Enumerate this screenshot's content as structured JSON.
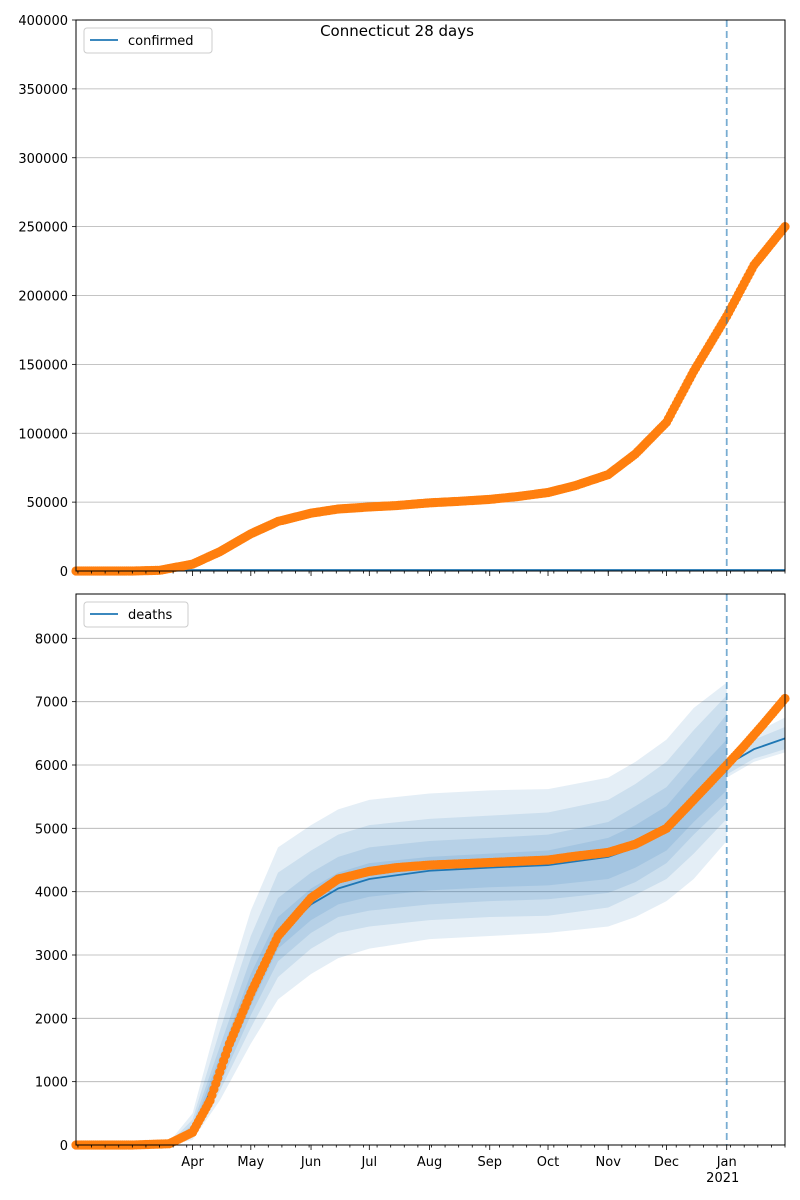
{
  "title": "Connecticut 28 days",
  "chart_data": [
    {
      "type": "line",
      "name": "confirmed-panel",
      "legend": {
        "label": "confirmed",
        "placement": "top-left",
        "color": "#1f77b4"
      },
      "ylim": [
        0,
        400000
      ],
      "yticks": [
        0,
        50000,
        100000,
        150000,
        200000,
        250000,
        300000,
        350000,
        400000
      ],
      "grid": "horizontal",
      "forecast_start": "2021-01-01",
      "model_line": {
        "color": "#1f77b4",
        "values": "near zero throughout"
      },
      "observed": {
        "color": "#ff7f0e",
        "points": [
          [
            "2020-02-01",
            0
          ],
          [
            "2020-03-01",
            0
          ],
          [
            "2020-03-15",
            500
          ],
          [
            "2020-04-01",
            5000
          ],
          [
            "2020-04-15",
            14000
          ],
          [
            "2020-05-01",
            27000
          ],
          [
            "2020-05-15",
            36000
          ],
          [
            "2020-06-01",
            42000
          ],
          [
            "2020-06-15",
            45000
          ],
          [
            "2020-07-01",
            46500
          ],
          [
            "2020-07-15",
            47500
          ],
          [
            "2020-08-01",
            49500
          ],
          [
            "2020-08-15",
            50500
          ],
          [
            "2020-09-01",
            52000
          ],
          [
            "2020-09-15",
            54000
          ],
          [
            "2020-10-01",
            57000
          ],
          [
            "2020-10-15",
            62000
          ],
          [
            "2020-11-01",
            70000
          ],
          [
            "2020-11-15",
            85000
          ],
          [
            "2020-12-01",
            108000
          ],
          [
            "2020-12-15",
            145000
          ],
          [
            "2021-01-01",
            185000
          ],
          [
            "2021-01-15",
            222000
          ],
          [
            "2021-01-31",
            250000
          ]
        ]
      }
    },
    {
      "type": "line",
      "name": "deaths-panel",
      "legend": {
        "label": "deaths",
        "placement": "top-left",
        "color": "#1f77b4"
      },
      "ylim": [
        0,
        8700
      ],
      "yticks": [
        0,
        1000,
        2000,
        3000,
        4000,
        5000,
        6000,
        7000,
        8000
      ],
      "grid": "horizontal",
      "forecast_start": "2021-01-01",
      "model_line": {
        "color": "#1f77b4",
        "points": [
          [
            "2020-03-15",
            0
          ],
          [
            "2020-04-01",
            200
          ],
          [
            "2020-04-15",
            1200
          ],
          [
            "2020-05-01",
            2400
          ],
          [
            "2020-05-15",
            3300
          ],
          [
            "2020-06-01",
            3800
          ],
          [
            "2020-06-15",
            4050
          ],
          [
            "2020-07-01",
            4200
          ],
          [
            "2020-08-01",
            4330
          ],
          [
            "2020-09-01",
            4380
          ],
          [
            "2020-10-01",
            4420
          ],
          [
            "2020-11-01",
            4550
          ],
          [
            "2020-11-15",
            4700
          ],
          [
            "2020-12-01",
            5000
          ],
          [
            "2020-12-15",
            5500
          ],
          [
            "2021-01-01",
            6000
          ],
          [
            "2021-01-15",
            6250
          ],
          [
            "2021-01-31",
            6420
          ]
        ]
      },
      "bands": [
        {
          "opacity": 0.12,
          "points": [
            [
              "2020-03-20",
              0,
              50
            ],
            [
              "2020-04-01",
              80,
              500
            ],
            [
              "2020-04-15",
              700,
              2100
            ],
            [
              "2020-05-01",
              1600,
              3700
            ],
            [
              "2020-05-15",
              2300,
              4700
            ],
            [
              "2020-06-01",
              2700,
              5050
            ],
            [
              "2020-06-15",
              2950,
              5300
            ],
            [
              "2020-07-01",
              3100,
              5450
            ],
            [
              "2020-08-01",
              3250,
              5550
            ],
            [
              "2020-09-01",
              3300,
              5600
            ],
            [
              "2020-10-01",
              3350,
              5620
            ],
            [
              "2020-11-01",
              3450,
              5800
            ],
            [
              "2020-11-15",
              3600,
              6050
            ],
            [
              "2020-12-01",
              3850,
              6400
            ],
            [
              "2020-12-15",
              4200,
              6900
            ],
            [
              "2021-01-01",
              4800,
              7300
            ]
          ]
        },
        {
          "opacity": 0.12,
          "points": [
            [
              "2020-03-20",
              0,
              30
            ],
            [
              "2020-04-01",
              120,
              400
            ],
            [
              "2020-04-15",
              850,
              1800
            ],
            [
              "2020-05-01",
              1850,
              3300
            ],
            [
              "2020-05-15",
              2650,
              4300
            ],
            [
              "2020-06-01",
              3100,
              4650
            ],
            [
              "2020-06-15",
              3350,
              4900
            ],
            [
              "2020-07-01",
              3450,
              5050
            ],
            [
              "2020-08-01",
              3550,
              5150
            ],
            [
              "2020-09-01",
              3600,
              5200
            ],
            [
              "2020-10-01",
              3620,
              5250
            ],
            [
              "2020-11-01",
              3750,
              5450
            ],
            [
              "2020-11-15",
              3950,
              5700
            ],
            [
              "2020-12-01",
              4200,
              6050
            ],
            [
              "2020-12-15",
              4600,
              6550
            ],
            [
              "2021-01-01",
              5150,
              7100
            ]
          ]
        },
        {
          "opacity": 0.12,
          "points": [
            [
              "2020-03-20",
              0,
              20
            ],
            [
              "2020-04-01",
              150,
              320
            ],
            [
              "2020-04-15",
              950,
              1550
            ],
            [
              "2020-05-01",
              2050,
              2950
            ],
            [
              "2020-05-15",
              2900,
              3900
            ],
            [
              "2020-06-01",
              3350,
              4300
            ],
            [
              "2020-06-15",
              3600,
              4550
            ],
            [
              "2020-07-01",
              3700,
              4700
            ],
            [
              "2020-08-01",
              3800,
              4800
            ],
            [
              "2020-09-01",
              3850,
              4850
            ],
            [
              "2020-10-01",
              3880,
              4900
            ],
            [
              "2020-11-01",
              3980,
              5100
            ],
            [
              "2020-11-15",
              4150,
              5350
            ],
            [
              "2020-12-01",
              4450,
              5650
            ],
            [
              "2020-12-15",
              4900,
              6150
            ],
            [
              "2021-01-01",
              5400,
              6800
            ]
          ]
        },
        {
          "opacity": 0.12,
          "points": [
            [
              "2020-03-20",
              0,
              10
            ],
            [
              "2020-04-01",
              170,
              260
            ],
            [
              "2020-04-15",
              1050,
              1400
            ],
            [
              "2020-05-01",
              2200,
              2700
            ],
            [
              "2020-05-15",
              3100,
              3600
            ],
            [
              "2020-06-01",
              3550,
              4050
            ],
            [
              "2020-06-15",
              3800,
              4300
            ],
            [
              "2020-07-01",
              3920,
              4450
            ],
            [
              "2020-08-01",
              4020,
              4550
            ],
            [
              "2020-09-01",
              4070,
              4600
            ],
            [
              "2020-10-01",
              4100,
              4650
            ],
            [
              "2020-11-01",
              4200,
              4850
            ],
            [
              "2020-11-15",
              4380,
              5050
            ],
            [
              "2020-12-01",
              4650,
              5350
            ],
            [
              "2020-12-15",
              5100,
              5850
            ],
            [
              "2021-01-01",
              5600,
              6400
            ]
          ]
        },
        {
          "opacity": 0.12,
          "points": [
            [
              "2021-01-01",
              5850,
              6050
            ],
            [
              "2021-01-15",
              6100,
              6400
            ],
            [
              "2021-01-31",
              6250,
              6600
            ]
          ]
        },
        {
          "opacity": 0.12,
          "points": [
            [
              "2021-01-01",
              5800,
              6100
            ],
            [
              "2021-01-15",
              6050,
              6500
            ],
            [
              "2021-01-31",
              6200,
              6750
            ]
          ]
        }
      ],
      "observed": {
        "color": "#ff7f0e",
        "points": [
          [
            "2020-02-01",
            0
          ],
          [
            "2020-03-01",
            0
          ],
          [
            "2020-03-20",
            20
          ],
          [
            "2020-04-01",
            200
          ],
          [
            "2020-04-10",
            700
          ],
          [
            "2020-04-20",
            1600
          ],
          [
            "2020-05-01",
            2400
          ],
          [
            "2020-05-15",
            3300
          ],
          [
            "2020-06-01",
            3900
          ],
          [
            "2020-06-15",
            4200
          ],
          [
            "2020-07-01",
            4320
          ],
          [
            "2020-07-15",
            4380
          ],
          [
            "2020-08-01",
            4420
          ],
          [
            "2020-09-01",
            4460
          ],
          [
            "2020-10-01",
            4500
          ],
          [
            "2020-10-15",
            4560
          ],
          [
            "2020-11-01",
            4620
          ],
          [
            "2020-11-15",
            4750
          ],
          [
            "2020-12-01",
            5000
          ],
          [
            "2020-12-15",
            5450
          ],
          [
            "2021-01-01",
            6000
          ],
          [
            "2021-01-10",
            6300
          ],
          [
            "2021-01-20",
            6650
          ],
          [
            "2021-01-31",
            7050
          ]
        ]
      }
    }
  ],
  "x_axis": {
    "start": "2020-02-01",
    "end": "2021-01-31",
    "month_ticks": [
      {
        "date": "2020-04-01",
        "label": "Apr"
      },
      {
        "date": "2020-05-01",
        "label": "May"
      },
      {
        "date": "2020-06-01",
        "label": "Jun"
      },
      {
        "date": "2020-07-01",
        "label": "Jul"
      },
      {
        "date": "2020-08-01",
        "label": "Aug"
      },
      {
        "date": "2020-09-01",
        "label": "Sep"
      },
      {
        "date": "2020-10-01",
        "label": "Oct"
      },
      {
        "date": "2020-11-01",
        "label": "Nov"
      },
      {
        "date": "2020-12-01",
        "label": "Dec"
      },
      {
        "date": "2021-01-01",
        "label": "Jan",
        "sublabel": "2021"
      }
    ]
  }
}
